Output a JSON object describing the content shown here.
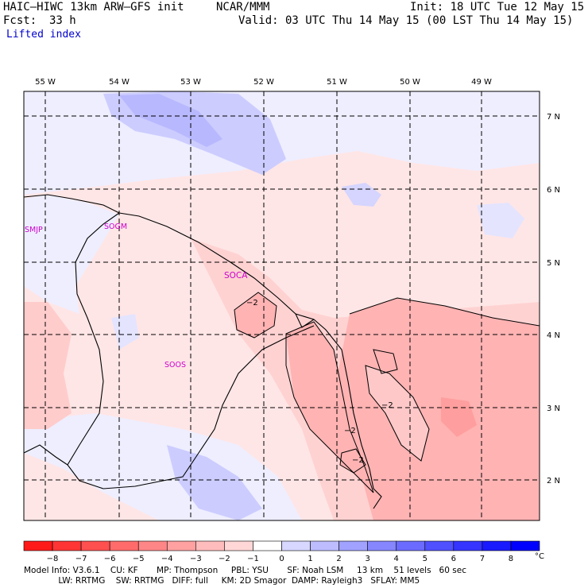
{
  "header": {
    "model_line": "HAIC–HIWC 13km ARW–GFS init",
    "org": "NCAR/MMM",
    "init": "Init: 18 UTC Tue 12 May 15",
    "fcst_label": "Fcst:",
    "fcst_value": "33 h",
    "valid": "Valid: 03 UTC Thu 14 May 15 (00 LST Thu 14 May 15)",
    "field": "Lifted index"
  },
  "map": {
    "lon_labels": [
      "55 W",
      "54 W",
      "53 W",
      "52 W",
      "51 W",
      "50 W",
      "49 W"
    ],
    "lat_labels": [
      "7 N",
      "6 N",
      "5 N",
      "4 N",
      "3 N",
      "2 N"
    ],
    "stations": [
      "SMJP",
      "SOGM",
      "SOCA",
      "SOOS"
    ],
    "contour_labels": [
      "−2",
      "−2",
      "−2",
      "−2"
    ]
  },
  "colorbar": {
    "ticks": [
      "−8",
      "−7",
      "−6",
      "−5",
      "−4",
      "−3",
      "−2",
      "−1",
      "0",
      "1",
      "2",
      "3",
      "4",
      "5",
      "6",
      "7",
      "8"
    ],
    "unit": "°C",
    "colors": [
      "#ff1a1a",
      "#ff3535",
      "#ff5050",
      "#ff6b6b",
      "#ff8686",
      "#ffa1a1",
      "#ffbcbc",
      "#ffd7d7",
      "#ffffff",
      "#d7d7ff",
      "#bcbcff",
      "#a1a1ff",
      "#8686ff",
      "#6b6bff",
      "#5050ff",
      "#3535ff",
      "#1a1aff",
      "#0000ff"
    ]
  },
  "footer": {
    "line1": "Model Info: V3.6.1    CU: KF       MP: Thompson     PBL: YSU       SF: Noah LSM     13 km    51 levels   60 sec",
    "line2": "             LW: RRTMG    SW: RRTMG   DIFF: full     KM: 2D Smagor  DAMP: Rayleigh3   SFLAY: MM5"
  }
}
